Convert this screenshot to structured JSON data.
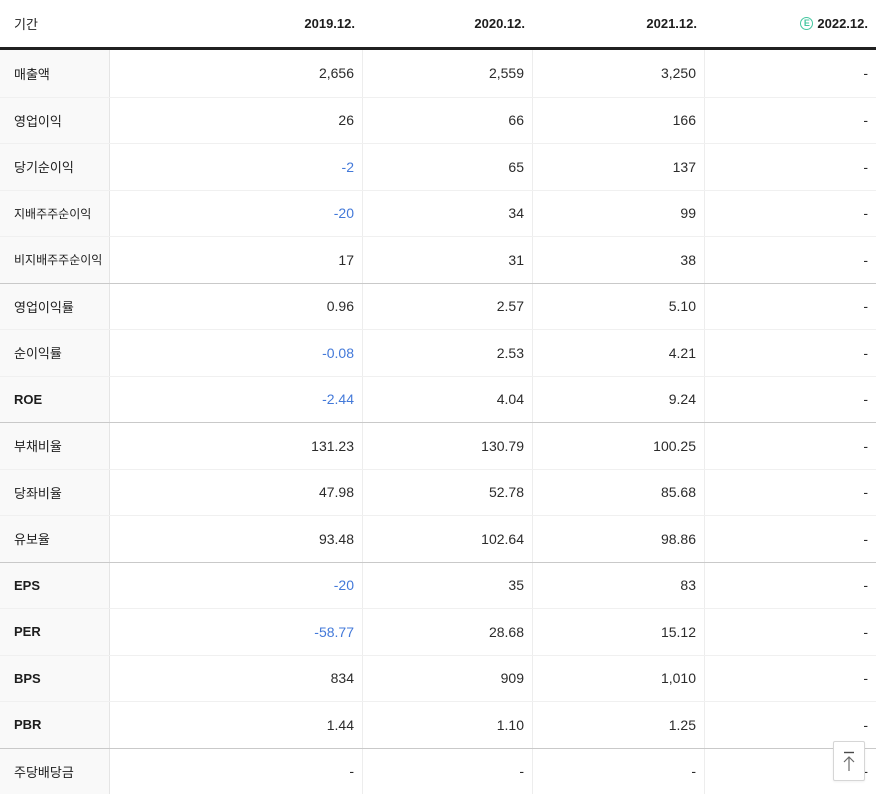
{
  "table": {
    "header": {
      "period_label": "기간",
      "columns": [
        {
          "label": "2019.12."
        },
        {
          "label": "2020.12."
        },
        {
          "label": "2021.12."
        },
        {
          "label": "2022.12.",
          "badge": "E"
        }
      ]
    },
    "rows": [
      {
        "label": "매출액",
        "cells": [
          {
            "v": "2,656"
          },
          {
            "v": "2,559"
          },
          {
            "v": "3,250"
          },
          {
            "v": "-"
          }
        ]
      },
      {
        "label": "영업이익",
        "cells": [
          {
            "v": "26"
          },
          {
            "v": "66"
          },
          {
            "v": "166"
          },
          {
            "v": "-"
          }
        ]
      },
      {
        "label": "당기순이익",
        "cells": [
          {
            "v": "-2",
            "neg": true
          },
          {
            "v": "65"
          },
          {
            "v": "137"
          },
          {
            "v": "-"
          }
        ]
      },
      {
        "label": "지배주주순이익",
        "small": true,
        "cells": [
          {
            "v": "-20",
            "neg": true
          },
          {
            "v": "34"
          },
          {
            "v": "99"
          },
          {
            "v": "-"
          }
        ]
      },
      {
        "label": "비지배주주순이익",
        "small": true,
        "cells": [
          {
            "v": "17"
          },
          {
            "v": "31"
          },
          {
            "v": "38"
          },
          {
            "v": "-"
          }
        ]
      },
      {
        "label": "영업이익률",
        "group_start": true,
        "cells": [
          {
            "v": "0.96"
          },
          {
            "v": "2.57"
          },
          {
            "v": "5.10"
          },
          {
            "v": "-"
          }
        ]
      },
      {
        "label": "순이익률",
        "cells": [
          {
            "v": "-0.08",
            "neg": true
          },
          {
            "v": "2.53"
          },
          {
            "v": "4.21"
          },
          {
            "v": "-"
          }
        ]
      },
      {
        "label": "ROE",
        "bold": true,
        "cells": [
          {
            "v": "-2.44",
            "neg": true
          },
          {
            "v": "4.04"
          },
          {
            "v": "9.24"
          },
          {
            "v": "-"
          }
        ]
      },
      {
        "label": "부채비율",
        "group_start": true,
        "cells": [
          {
            "v": "131.23"
          },
          {
            "v": "130.79"
          },
          {
            "v": "100.25"
          },
          {
            "v": "-"
          }
        ]
      },
      {
        "label": "당좌비율",
        "cells": [
          {
            "v": "47.98"
          },
          {
            "v": "52.78"
          },
          {
            "v": "85.68"
          },
          {
            "v": "-"
          }
        ]
      },
      {
        "label": "유보율",
        "cells": [
          {
            "v": "93.48"
          },
          {
            "v": "102.64"
          },
          {
            "v": "98.86"
          },
          {
            "v": "-"
          }
        ]
      },
      {
        "label": "EPS",
        "bold": true,
        "group_start": true,
        "cells": [
          {
            "v": "-20",
            "neg": true
          },
          {
            "v": "35"
          },
          {
            "v": "83"
          },
          {
            "v": "-"
          }
        ]
      },
      {
        "label": "PER",
        "bold": true,
        "cells": [
          {
            "v": "-58.77",
            "neg": true
          },
          {
            "v": "28.68"
          },
          {
            "v": "15.12"
          },
          {
            "v": "-"
          }
        ]
      },
      {
        "label": "BPS",
        "bold": true,
        "cells": [
          {
            "v": "834"
          },
          {
            "v": "909"
          },
          {
            "v": "1,010"
          },
          {
            "v": "-"
          }
        ]
      },
      {
        "label": "PBR",
        "bold": true,
        "cells": [
          {
            "v": "1.44"
          },
          {
            "v": "1.10"
          },
          {
            "v": "1.25"
          },
          {
            "v": "-"
          }
        ]
      },
      {
        "label": "주당배당금",
        "group_start": true,
        "cells": [
          {
            "v": "-"
          },
          {
            "v": "-"
          },
          {
            "v": "-"
          },
          {
            "v": "-"
          }
        ]
      }
    ]
  },
  "icons": {
    "estimate_badge_icon": "circled-E",
    "scroll_top_icon": "arrow-up-with-bar"
  },
  "colors": {
    "negative_value": "#4379d9",
    "estimate_badge": "#45c7a0",
    "header_border": "#202020",
    "group_divider": "#c9c9c9"
  }
}
